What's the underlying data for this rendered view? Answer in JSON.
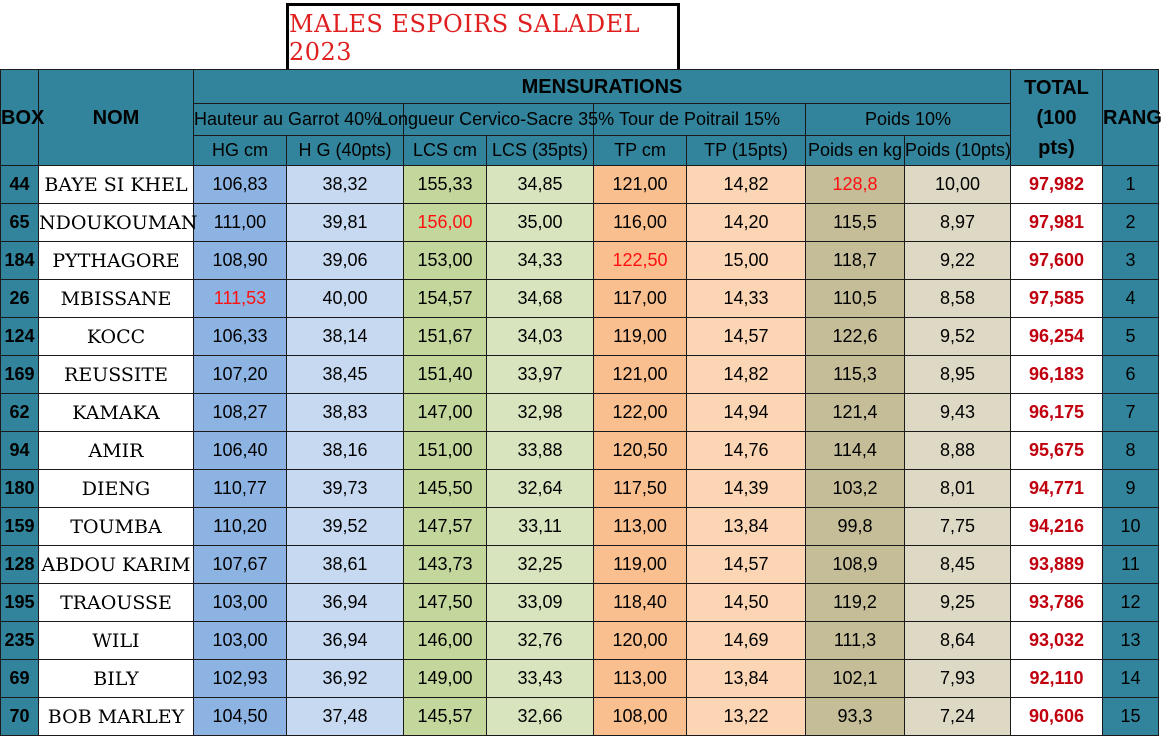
{
  "title": "MALES ESPOIRS SALADEL 2023",
  "headers": {
    "box": "BOX",
    "nom": "NOM",
    "mensurations": "MENSURATIONS",
    "total": [
      "TOTAL",
      "(100",
      "pts)"
    ],
    "rang": "RANG",
    "groups": {
      "hg": "Hauteur au Garrot 40%",
      "lcs": "Longueur Cervico-Sacre 35%",
      "tp": "Tour de Poitrail 15%",
      "poids": "Poids 10%"
    },
    "sub": {
      "hg_cm": "HG cm",
      "hg_pts": "H G (40pts)",
      "lcs_cm": "LCS cm",
      "lcs_pts": "LCS (35pts)",
      "tp_cm": "TP cm",
      "tp_pts": "TP (15pts)",
      "poids_kg": "Poids en kg",
      "poids_pts": "Poids (10pts)"
    }
  },
  "rows": [
    {
      "box": "44",
      "nom": "BAYE SI KHEL",
      "hg": "106,83",
      "hgp": "38,32",
      "lcs": "155,33",
      "lcsp": "34,85",
      "tp": "121,00",
      "tpp": "14,82",
      "poids": "128,8",
      "poidsp": "10,00",
      "total": "97,982",
      "rang": "1"
    },
    {
      "box": "65",
      "nom": "NDOUKOUMAN",
      "hg": "111,00",
      "hgp": "39,81",
      "lcs": "156,00",
      "lcsp": "35,00",
      "tp": "116,00",
      "tpp": "14,20",
      "poids": "115,5",
      "poidsp": "8,97",
      "total": "97,981",
      "rang": "2"
    },
    {
      "box": "184",
      "nom": "PYTHAGORE",
      "hg": "108,90",
      "hgp": "39,06",
      "lcs": "153,00",
      "lcsp": "34,33",
      "tp": "122,50",
      "tpp": "15,00",
      "poids": "118,7",
      "poidsp": "9,22",
      "total": "97,600",
      "rang": "3"
    },
    {
      "box": "26",
      "nom": "MBISSANE",
      "hg": "111,53",
      "hgp": "40,00",
      "lcs": "154,57",
      "lcsp": "34,68",
      "tp": "117,00",
      "tpp": "14,33",
      "poids": "110,5",
      "poidsp": "8,58",
      "total": "97,585",
      "rang": "4"
    },
    {
      "box": "124",
      "nom": "KOCC",
      "hg": "106,33",
      "hgp": "38,14",
      "lcs": "151,67",
      "lcsp": "34,03",
      "tp": "119,00",
      "tpp": "14,57",
      "poids": "122,6",
      "poidsp": "9,52",
      "total": "96,254",
      "rang": "5"
    },
    {
      "box": "169",
      "nom": "REUSSITE",
      "hg": "107,20",
      "hgp": "38,45",
      "lcs": "151,40",
      "lcsp": "33,97",
      "tp": "121,00",
      "tpp": "14,82",
      "poids": "115,3",
      "poidsp": "8,95",
      "total": "96,183",
      "rang": "6"
    },
    {
      "box": "62",
      "nom": "KAMAKA",
      "hg": "108,27",
      "hgp": "38,83",
      "lcs": "147,00",
      "lcsp": "32,98",
      "tp": "122,00",
      "tpp": "14,94",
      "poids": "121,4",
      "poidsp": "9,43",
      "total": "96,175",
      "rang": "7"
    },
    {
      "box": "94",
      "nom": "AMIR",
      "hg": "106,40",
      "hgp": "38,16",
      "lcs": "151,00",
      "lcsp": "33,88",
      "tp": "120,50",
      "tpp": "14,76",
      "poids": "114,4",
      "poidsp": "8,88",
      "total": "95,675",
      "rang": "8"
    },
    {
      "box": "180",
      "nom": "DIENG",
      "hg": "110,77",
      "hgp": "39,73",
      "lcs": "145,50",
      "lcsp": "32,64",
      "tp": "117,50",
      "tpp": "14,39",
      "poids": "103,2",
      "poidsp": "8,01",
      "total": "94,771",
      "rang": "9"
    },
    {
      "box": "159",
      "nom": "TOUMBA",
      "hg": "110,20",
      "hgp": "39,52",
      "lcs": "147,57",
      "lcsp": "33,11",
      "tp": "113,00",
      "tpp": "13,84",
      "poids": "99,8",
      "poidsp": "7,75",
      "total": "94,216",
      "rang": "10"
    },
    {
      "box": "128",
      "nom": "ABDOU KARIM",
      "hg": "107,67",
      "hgp": "38,61",
      "lcs": "143,73",
      "lcsp": "32,25",
      "tp": "119,00",
      "tpp": "14,57",
      "poids": "108,9",
      "poidsp": "8,45",
      "total": "93,889",
      "rang": "11"
    },
    {
      "box": "195",
      "nom": "TRAOUSSE",
      "hg": "103,00",
      "hgp": "36,94",
      "lcs": "147,50",
      "lcsp": "33,09",
      "tp": "118,40",
      "tpp": "14,50",
      "poids": "119,2",
      "poidsp": "9,25",
      "total": "93,786",
      "rang": "12"
    },
    {
      "box": "235",
      "nom": "WILI",
      "hg": "103,00",
      "hgp": "36,94",
      "lcs": "146,00",
      "lcsp": "32,76",
      "tp": "120,00",
      "tpp": "14,69",
      "poids": "111,3",
      "poidsp": "8,64",
      "total": "93,032",
      "rang": "13"
    },
    {
      "box": "69",
      "nom": "BILY",
      "hg": "102,93",
      "hgp": "36,92",
      "lcs": "149,00",
      "lcsp": "33,43",
      "tp": "113,00",
      "tpp": "13,84",
      "poids": "102,1",
      "poidsp": "7,93",
      "total": "92,110",
      "rang": "14"
    },
    {
      "box": "70",
      "nom": "BOB MARLEY",
      "hg": "104,50",
      "hgp": "37,48",
      "lcs": "145,57",
      "lcsp": "32,66",
      "tp": "108,00",
      "tpp": "13,22",
      "poids": "93,3",
      "poidsp": "7,24",
      "total": "90,606",
      "rang": "15"
    }
  ],
  "highlight_color": "#ff1010",
  "highlights": [
    {
      "row": 0,
      "field": "poids"
    },
    {
      "row": 1,
      "field": "lcs"
    },
    {
      "row": 2,
      "field": "tp"
    },
    {
      "row": 3,
      "field": "hg"
    }
  ]
}
